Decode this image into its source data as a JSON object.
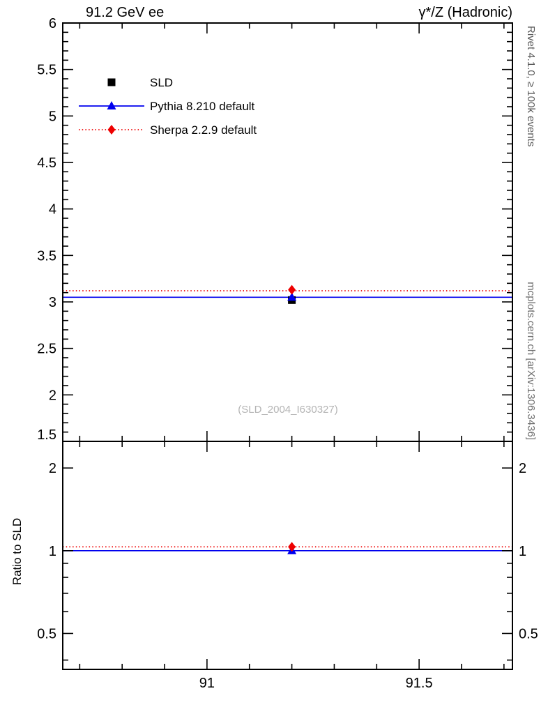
{
  "header": {
    "left": "91.2 GeV ee",
    "right": "γ*/Z (Hadronic)"
  },
  "annotations": {
    "rivet": "Rivet 4.1.0, ≥ 100k events",
    "mcplots": "mcplots.cern.ch [arXiv:1306.3436]",
    "watermark": "(SLD_2004_I630327)"
  },
  "chart_data": {
    "type": "line",
    "title": "91.2 GeV ee — γ*/Z (Hadronic)",
    "x_range": [
      90.66,
      91.72
    ],
    "x_ticks": [
      91,
      91.5
    ],
    "x_minor_step": 0.1,
    "legend_position": "top-left",
    "main_panel": {
      "ylim": [
        1.5,
        6
      ],
      "yticks": [
        1.5,
        2,
        2.5,
        3,
        3.5,
        4,
        4.5,
        5,
        5.5,
        6
      ],
      "y_minor_step": 0.1,
      "series": [
        {
          "id": "sld",
          "name": "SLD",
          "marker": "square",
          "color": "#000000",
          "style": "none",
          "x": 91.2,
          "y": 3.02,
          "line_y": null
        },
        {
          "id": "pythia",
          "name": "Pythia 8.210 default",
          "marker": "triangle",
          "color": "#0000ee",
          "style": "solid",
          "x": 91.2,
          "y": 3.05,
          "line_y": 3.05
        },
        {
          "id": "sherpa",
          "name": "Sherpa 2.2.9 default",
          "marker": "diamond",
          "color": "#ee0000",
          "style": "dotted",
          "x": 91.2,
          "y": 3.13,
          "line_y": 3.12
        }
      ]
    },
    "ratio_panel": {
      "label": "Ratio to SLD",
      "scale": "log",
      "ylim": [
        0.37,
        2.5
      ],
      "yticks": [
        0.5,
        1,
        2
      ],
      "yticks_minor": [
        0.4,
        0.6,
        0.7,
        0.8,
        0.9
      ],
      "series": [
        {
          "id": "pythia-ratio",
          "name": "Pythia 8.210 default",
          "marker": "triangle",
          "color": "#0000ee",
          "style": "solid",
          "x": 91.2,
          "y": 1.0,
          "line_y": 1.0
        },
        {
          "id": "sherpa-ratio",
          "name": "Sherpa 2.2.9 default",
          "marker": "diamond",
          "color": "#ee0000",
          "style": "dotted",
          "x": 91.2,
          "y": 1.033,
          "line_y": 1.033
        }
      ]
    },
    "legend": [
      {
        "label": "SLD",
        "marker": "square",
        "color": "#000000",
        "line": "none"
      },
      {
        "label": "Pythia 8.210 default",
        "marker": "triangle",
        "color": "#0000ee",
        "line": "solid"
      },
      {
        "label": "Sherpa 2.2.9 default",
        "marker": "diamond",
        "color": "#ee0000",
        "line": "dotted"
      }
    ]
  }
}
